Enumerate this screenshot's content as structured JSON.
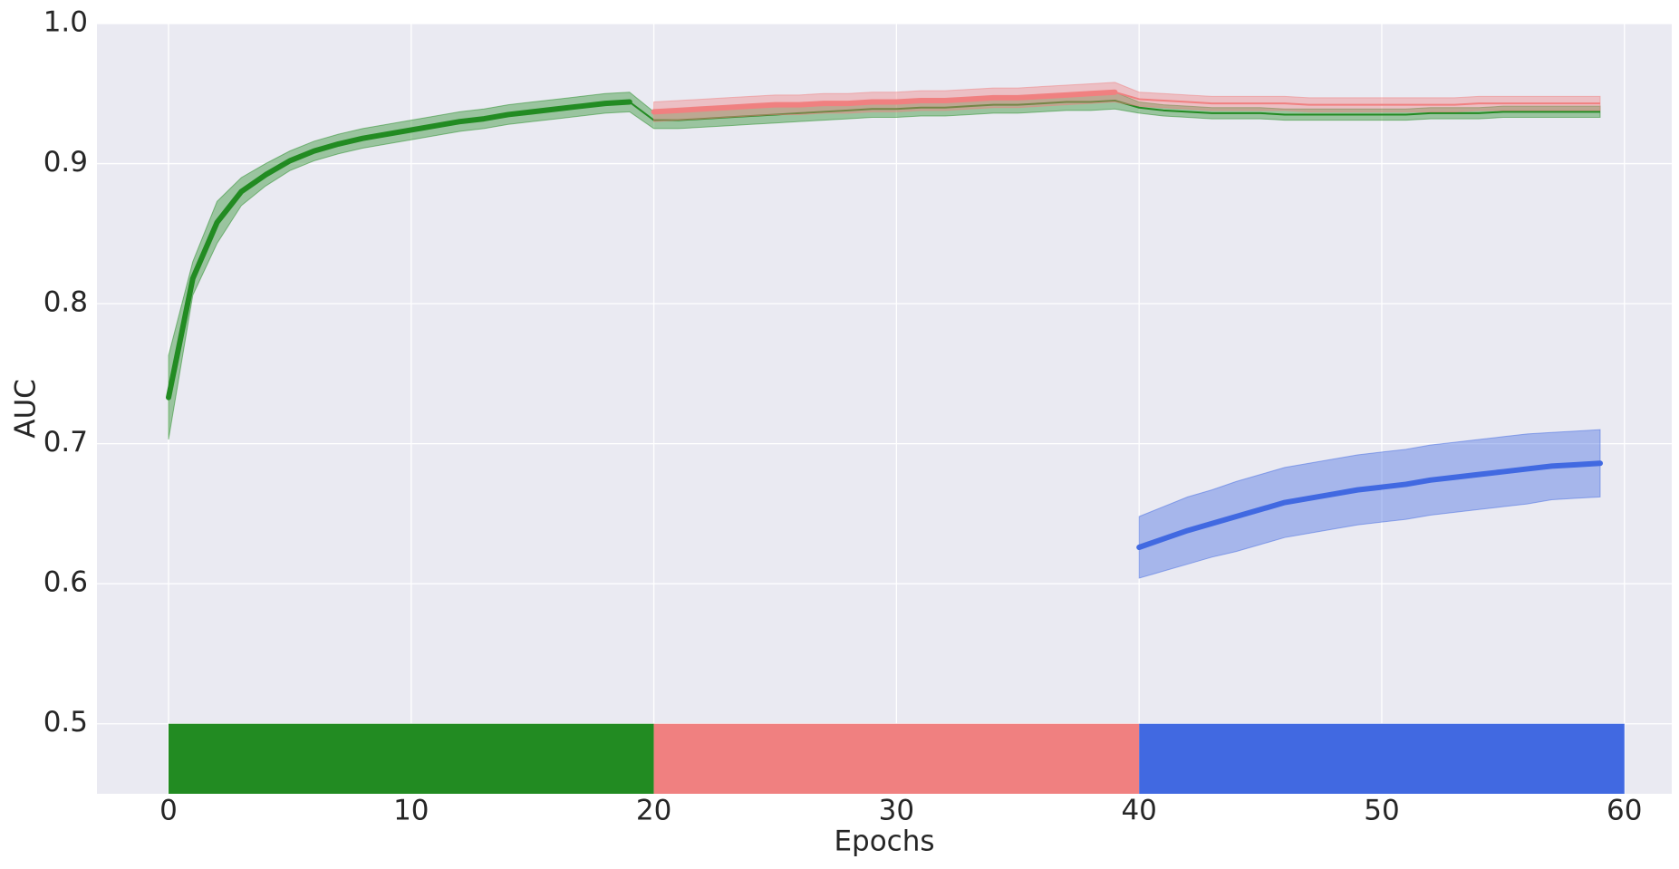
{
  "chart_data": {
    "type": "line",
    "x_label": "Epochs",
    "y_label": "AUC",
    "xlim": [
      -2.95,
      61.95
    ],
    "ylim": [
      0.45,
      1.0
    ],
    "xticks": [
      0,
      10,
      20,
      30,
      40,
      50,
      60
    ],
    "yticks": [
      0.5,
      0.6,
      0.7,
      0.8,
      0.9,
      {
        "value": 1.0,
        "label": "1.0"
      }
    ],
    "grid": true,
    "series": [
      {
        "color": "#228b22",
        "x": [
          0,
          1,
          2,
          3,
          4,
          5,
          6,
          7,
          8,
          9,
          10,
          11,
          12,
          13,
          14,
          15,
          16,
          17,
          18,
          19,
          20,
          21,
          22,
          23,
          24,
          25,
          26,
          27,
          28,
          29,
          30,
          31,
          32,
          33,
          34,
          35,
          36,
          37,
          38,
          39,
          40,
          41,
          42,
          43,
          44,
          45,
          46,
          47,
          48,
          49,
          50,
          51,
          52,
          53,
          54,
          55,
          56,
          57,
          58,
          59
        ],
        "values": [
          0.733,
          0.818,
          0.858,
          0.88,
          0.892,
          0.902,
          0.909,
          0.914,
          0.918,
          0.921,
          0.924,
          0.927,
          0.93,
          0.932,
          0.935,
          0.937,
          0.939,
          0.941,
          0.943,
          0.944,
          0.931,
          0.931,
          0.932,
          0.933,
          0.934,
          0.935,
          0.936,
          0.937,
          0.938,
          0.939,
          0.939,
          0.94,
          0.94,
          0.941,
          0.942,
          0.942,
          0.943,
          0.944,
          0.944,
          0.945,
          0.94,
          0.938,
          0.937,
          0.936,
          0.936,
          0.936,
          0.935,
          0.935,
          0.935,
          0.935,
          0.935,
          0.935,
          0.936,
          0.936,
          0.936,
          0.937,
          0.937,
          0.937,
          0.937,
          0.937
        ],
        "errors": [
          0.03,
          0.012,
          0.015,
          0.01,
          0.008,
          0.007,
          0.007,
          0.007,
          0.007,
          0.007,
          0.007,
          0.007,
          0.007,
          0.007,
          0.007,
          0.007,
          0.007,
          0.007,
          0.007,
          0.007,
          0.006,
          0.006,
          0.006,
          0.006,
          0.006,
          0.006,
          0.006,
          0.006,
          0.006,
          0.006,
          0.006,
          0.006,
          0.006,
          0.006,
          0.006,
          0.006,
          0.006,
          0.006,
          0.006,
          0.006,
          0.004,
          0.004,
          0.004,
          0.004,
          0.004,
          0.004,
          0.004,
          0.004,
          0.004,
          0.004,
          0.004,
          0.004,
          0.004,
          0.004,
          0.004,
          0.004,
          0.004,
          0.004,
          0.004,
          0.004
        ]
      },
      {
        "color": "#f08080",
        "x": [
          20,
          21,
          22,
          23,
          24,
          25,
          26,
          27,
          28,
          29,
          30,
          31,
          32,
          33,
          34,
          35,
          36,
          37,
          38,
          39,
          40,
          41,
          42,
          43,
          44,
          45,
          46,
          47,
          48,
          49,
          50,
          51,
          52,
          53,
          54,
          55,
          56,
          57,
          58,
          59
        ],
        "values": [
          0.937,
          0.938,
          0.939,
          0.94,
          0.941,
          0.942,
          0.942,
          0.943,
          0.943,
          0.944,
          0.944,
          0.945,
          0.945,
          0.946,
          0.947,
          0.947,
          0.948,
          0.949,
          0.95,
          0.951,
          0.946,
          0.945,
          0.944,
          0.943,
          0.943,
          0.943,
          0.943,
          0.942,
          0.942,
          0.942,
          0.942,
          0.942,
          0.942,
          0.942,
          0.943,
          0.943,
          0.943,
          0.943,
          0.943,
          0.943
        ],
        "errors": [
          0.007,
          0.007,
          0.007,
          0.007,
          0.007,
          0.007,
          0.007,
          0.007,
          0.007,
          0.007,
          0.007,
          0.007,
          0.007,
          0.007,
          0.007,
          0.007,
          0.007,
          0.007,
          0.007,
          0.007,
          0.005,
          0.005,
          0.005,
          0.005,
          0.005,
          0.005,
          0.005,
          0.005,
          0.005,
          0.005,
          0.005,
          0.005,
          0.005,
          0.005,
          0.005,
          0.005,
          0.005,
          0.005,
          0.005,
          0.005
        ]
      },
      {
        "color": "#4169e1",
        "x": [
          40,
          41,
          42,
          43,
          44,
          45,
          46,
          47,
          48,
          49,
          50,
          51,
          52,
          53,
          54,
          55,
          56,
          57,
          58,
          59
        ],
        "values": [
          0.626,
          0.632,
          0.638,
          0.643,
          0.648,
          0.653,
          0.658,
          0.661,
          0.664,
          0.667,
          0.669,
          0.671,
          0.674,
          0.676,
          0.678,
          0.68,
          0.682,
          0.684,
          0.685,
          0.686
        ],
        "errors": [
          0.022,
          0.023,
          0.024,
          0.024,
          0.025,
          0.025,
          0.025,
          0.025,
          0.025,
          0.025,
          0.025,
          0.025,
          0.025,
          0.025,
          0.025,
          0.025,
          0.025,
          0.024,
          0.024,
          0.024
        ]
      }
    ],
    "phases": [
      {
        "start": 0,
        "end": 20,
        "top": 0.5,
        "color": "#228b22"
      },
      {
        "start": 20,
        "end": 40,
        "top": 0.5,
        "color": "#f08080"
      },
      {
        "start": 40,
        "end": 60,
        "top": 0.5,
        "color": "#4169e1"
      }
    ]
  }
}
